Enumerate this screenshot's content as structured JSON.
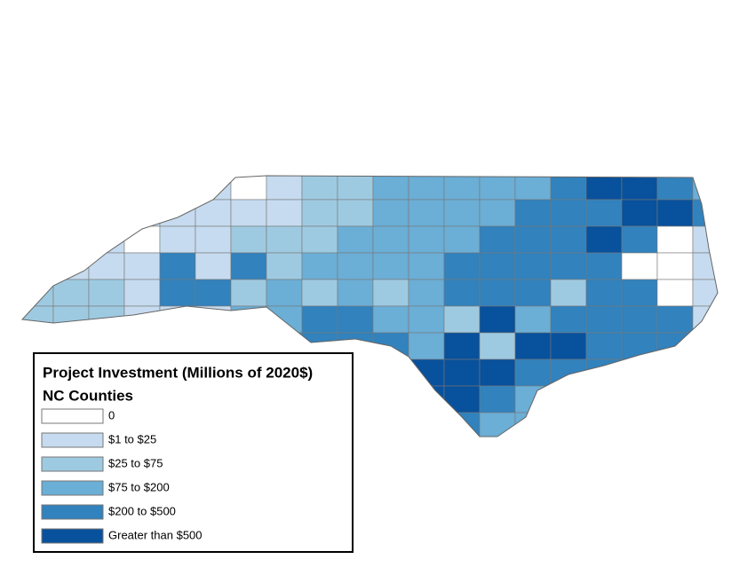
{
  "legend": {
    "title": "Project Investment (Millions of 2020$)",
    "subtitle": "NC Counties",
    "items": [
      {
        "label": "0",
        "color": "#ffffff"
      },
      {
        "label": "$1 to $25",
        "color": "#c6dbef"
      },
      {
        "label": "$25 to $75",
        "color": "#9ecae1"
      },
      {
        "label": "$75 to $200",
        "color": "#6baed6"
      },
      {
        "label": "$200 to $500",
        "color": "#3182bd"
      },
      {
        "label": "Greater than $500",
        "color": "#08519c"
      }
    ]
  }
}
